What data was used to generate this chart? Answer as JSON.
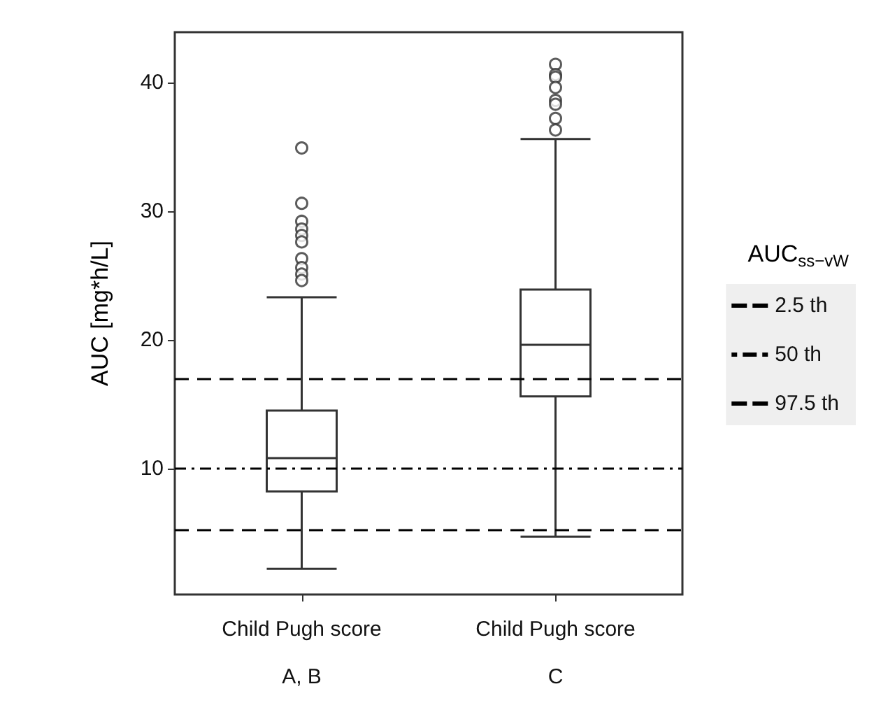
{
  "chart_data": {
    "type": "box",
    "categories": [
      "Child Pugh score\nA, B",
      "Child Pugh score\nC"
    ],
    "ylabel": "AUC [mg*h/L]",
    "legend_title": "AUC$_{ss−vW}$",
    "color": "#333333",
    "boxes": [
      {
        "low": 2.2,
        "q1": 8.2,
        "median": 10.8,
        "q3": 14.5,
        "high": 23.3,
        "outliers": [
          34.9,
          30.6,
          29.2,
          28.6,
          28.1,
          27.6,
          26.3,
          25.6,
          25.1,
          24.6
        ]
      },
      {
        "low": 4.7,
        "q1": 15.6,
        "median": 19.6,
        "q3": 23.9,
        "high": 35.6,
        "outliers": [
          41.4,
          40.6,
          40.4,
          39.6,
          38.6,
          38.3,
          37.2,
          36.3
        ]
      }
    ],
    "ylim": [
      0.2,
      43.9
    ],
    "yticks": [
      10,
      20,
      30,
      40
    ],
    "grid": false,
    "legend": "right",
    "ref_lines": [
      {
        "axis": "y",
        "value": 5.2,
        "label": "2.5 th",
        "color": "#000000",
        "line_style": "dashed"
      },
      {
        "axis": "y",
        "value": 10.0,
        "label": "50 th",
        "color": "#000000",
        "line_style": "dashdot"
      },
      {
        "axis": "y",
        "value": 17.0,
        "label": "97.5 th",
        "color": "#000000",
        "line_style": "dashed"
      }
    ]
  }
}
